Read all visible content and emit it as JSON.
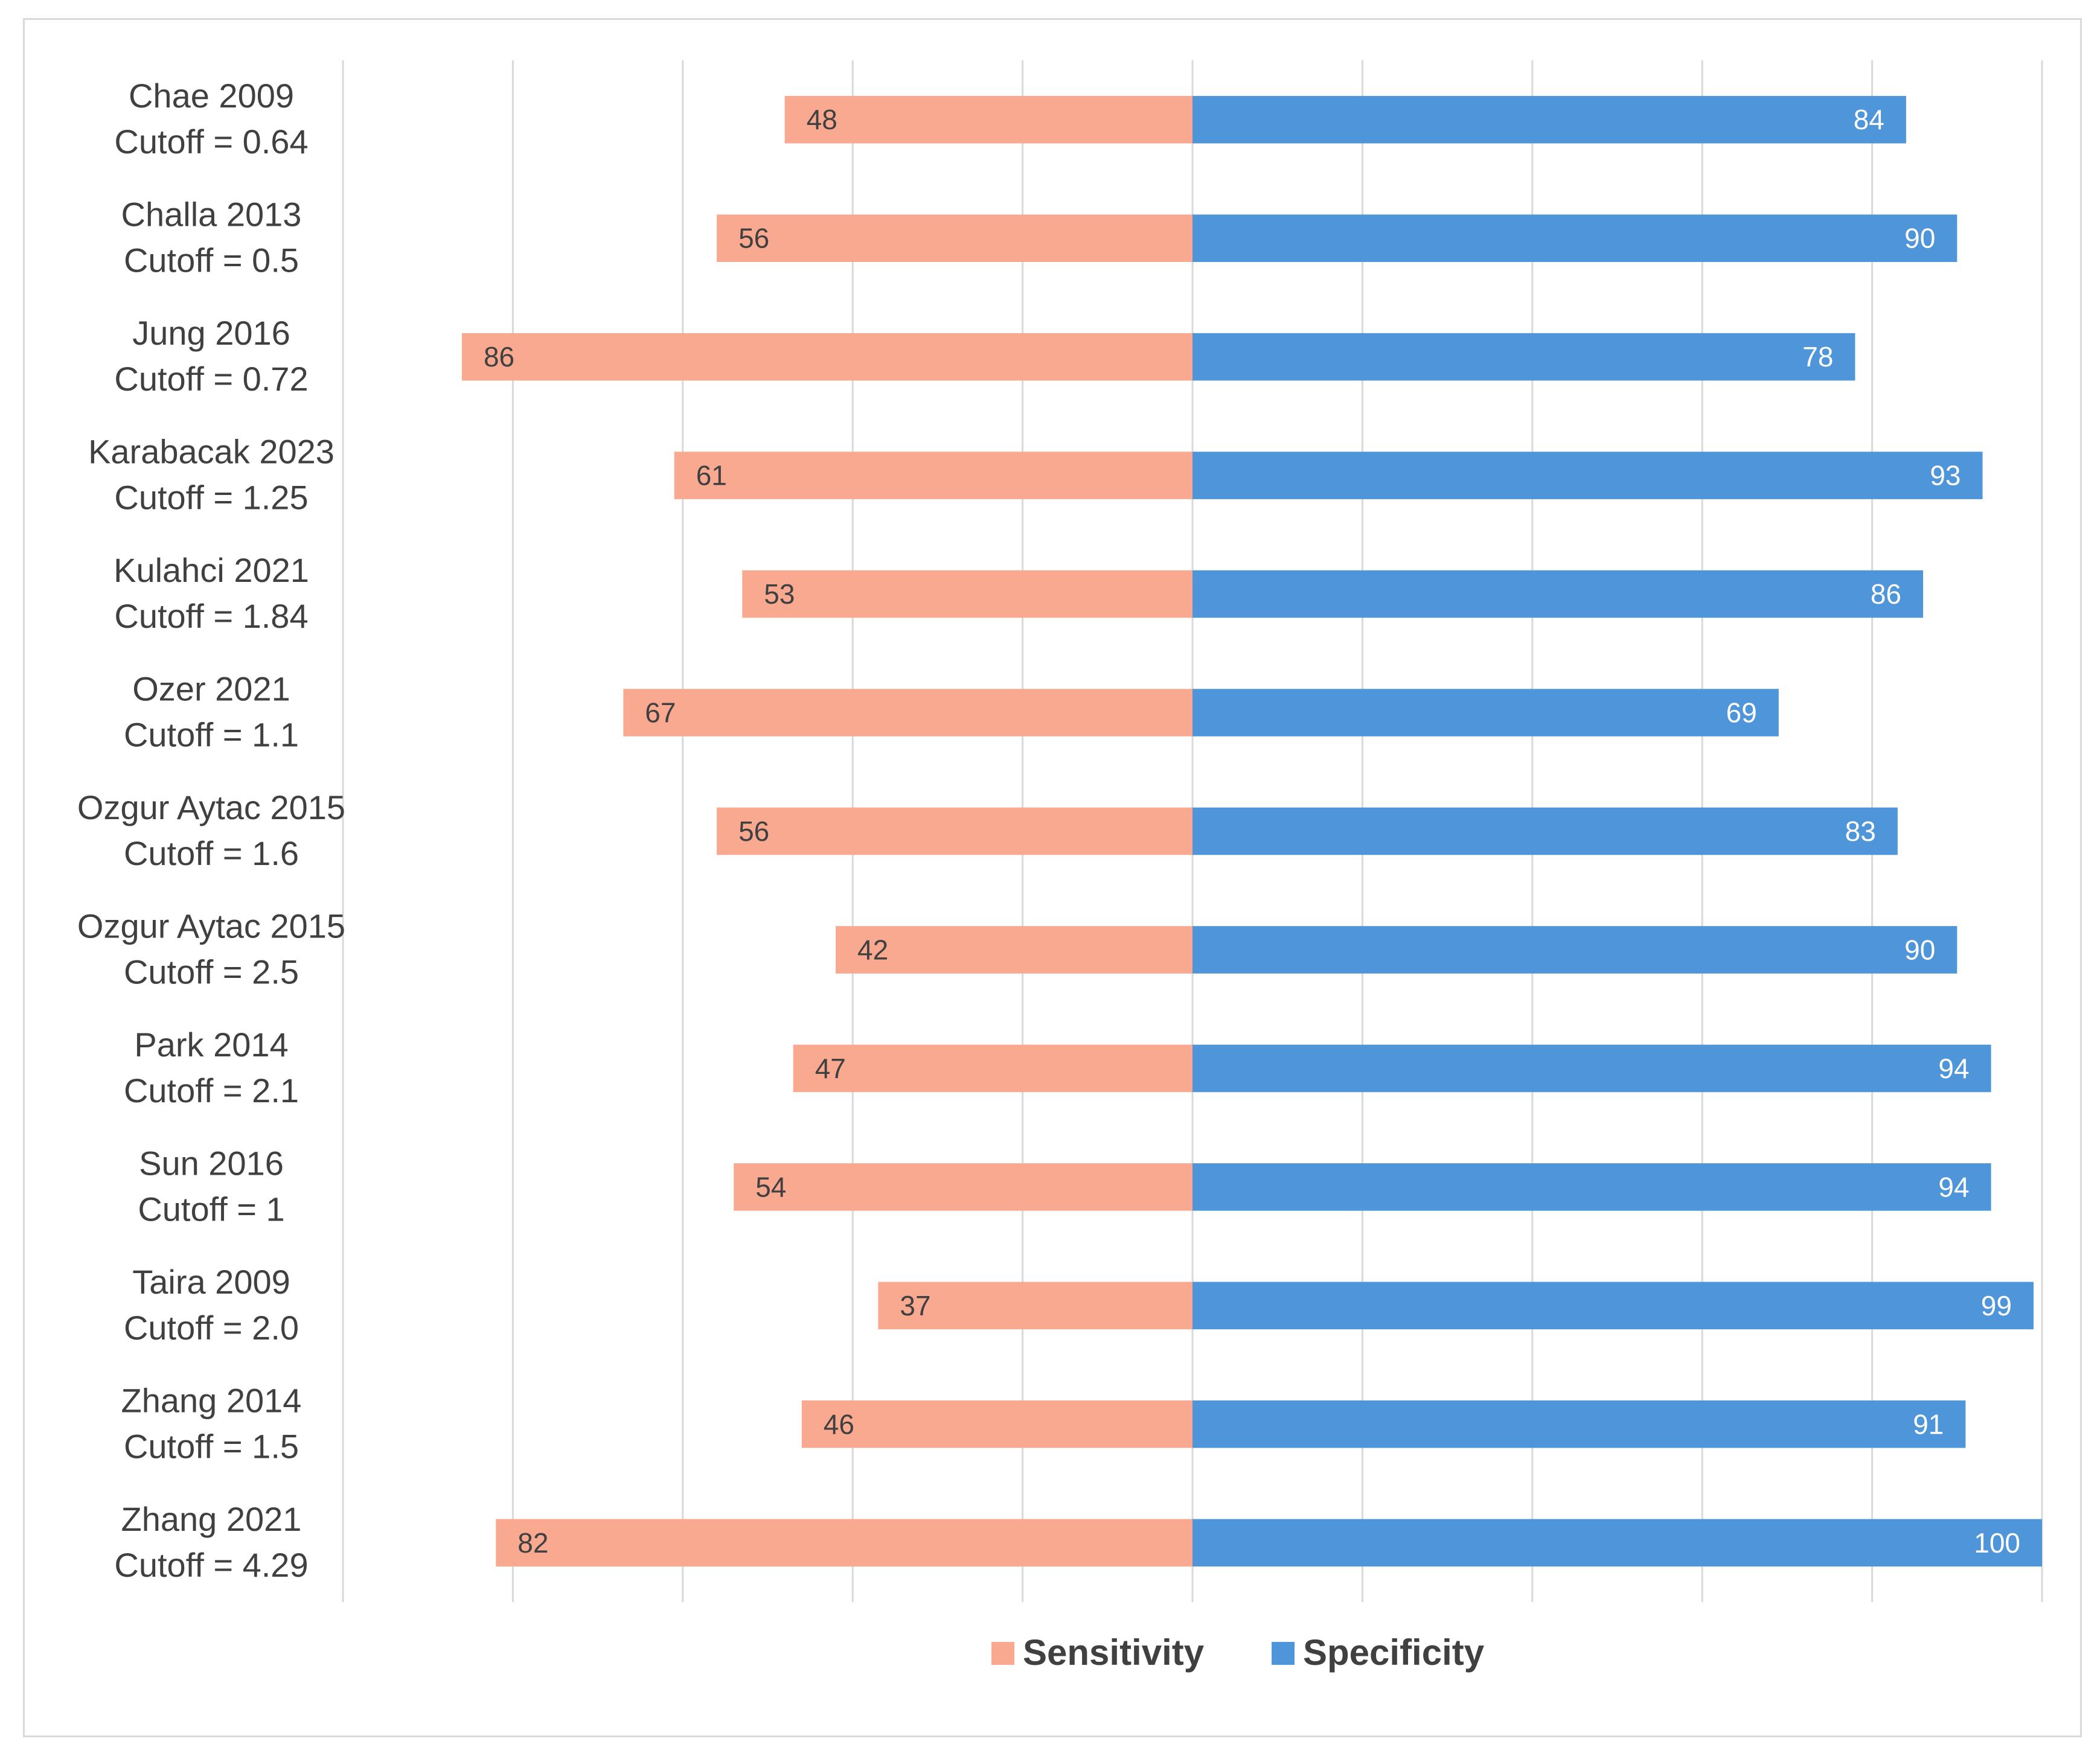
{
  "chart_data": {
    "type": "bar",
    "orientation": "horizontal",
    "layout": "diverging",
    "title": "",
    "xlabel": "",
    "ylabel": "",
    "categories": [
      [
        "Chae 2009",
        "Cutoff = 0.64"
      ],
      [
        "Challa 2013",
        "Cutoff = 0.5"
      ],
      [
        "Jung 2016",
        "Cutoff = 0.72"
      ],
      [
        "Karabacak 2023",
        "Cutoff = 1.25"
      ],
      [
        "Kulahci 2021",
        "Cutoff = 1.84"
      ],
      [
        "Ozer 2021",
        "Cutoff = 1.1"
      ],
      [
        "Ozgur Aytac 2015",
        "Cutoff = 1.6"
      ],
      [
        "Ozgur Aytac 2015",
        "Cutoff = 2.5"
      ],
      [
        "Park 2014",
        "Cutoff = 2.1"
      ],
      [
        "Sun 2016",
        "Cutoff = 1"
      ],
      [
        "Taira 2009",
        "Cutoff = 2.0"
      ],
      [
        "Zhang 2014",
        "Cutoff = 1.5"
      ],
      [
        "Zhang 2021",
        "Cutoff = 4.29"
      ]
    ],
    "series": [
      {
        "name": "Sensitivity",
        "color": "#F8A98F",
        "direction": "left",
        "values": [
          48,
          56,
          86,
          61,
          53,
          67,
          56,
          42,
          47,
          54,
          37,
          46,
          82
        ]
      },
      {
        "name": "Specificity",
        "color": "#4E95D9",
        "direction": "right",
        "values": [
          84,
          90,
          78,
          93,
          86,
          69,
          83,
          90,
          94,
          94,
          99,
          91,
          100
        ]
      }
    ],
    "xlim": [
      -100,
      100
    ],
    "grid": true,
    "legend": "bottom-center",
    "colors": {
      "gridline": "#d9d9d9",
      "label_text": "#404040",
      "value_text_on_blue": "#ffffff",
      "value_text_on_pink": "#404040"
    }
  }
}
